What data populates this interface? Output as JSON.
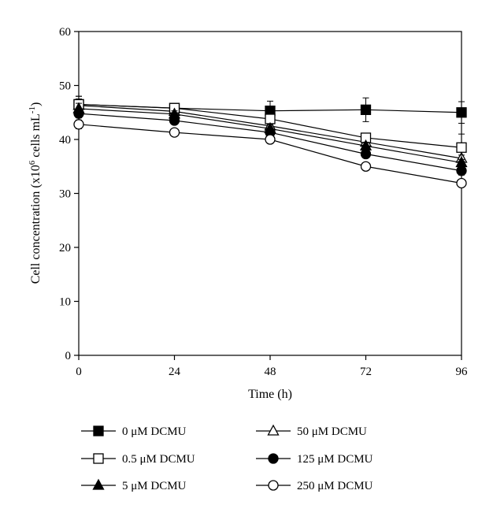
{
  "chart_data": {
    "type": "line",
    "xlabel": "Time (h)",
    "ylabel_main": "Cell concentration (x10",
    "ylabel_sup1": "6",
    "ylabel_mid": " cells mL",
    "ylabel_sup2": "-1",
    "ylabel_end": ")",
    "xlim": [
      0,
      96
    ],
    "ylim": [
      0,
      60
    ],
    "x_ticks": [
      0,
      24,
      48,
      72,
      96
    ],
    "y_ticks": [
      0,
      10,
      20,
      30,
      40,
      50,
      60
    ],
    "grid": false,
    "legend_position": "bottom",
    "series": [
      {
        "name": "0 μM DCMU",
        "marker": "square-filled",
        "x": [
          0,
          24,
          48,
          72,
          96
        ],
        "values": [
          46.5,
          45.8,
          45.3,
          45.5,
          45.0
        ],
        "err": [
          1.5,
          0.6,
          1.8,
          2.2,
          2.0
        ]
      },
      {
        "name": "50 μM DCMU",
        "marker": "triangle-open",
        "x": [
          0,
          24,
          48,
          72,
          96
        ],
        "values": [
          46.3,
          45.2,
          42.5,
          39.5,
          36.5
        ],
        "err": [
          1.2,
          0.5,
          0.8,
          0.7,
          0.6
        ]
      },
      {
        "name": "0.5 μM DCMU",
        "marker": "square-open",
        "x": [
          0,
          24,
          48,
          72,
          96
        ],
        "values": [
          46.5,
          45.8,
          43.8,
          40.3,
          38.5
        ],
        "err": [
          1.5,
          0.6,
          0.8,
          0.7,
          2.5
        ]
      },
      {
        "name": "125 μM DCMU",
        "marker": "circle-filled",
        "x": [
          0,
          24,
          48,
          72,
          96
        ],
        "values": [
          44.8,
          43.5,
          41.3,
          37.3,
          34.2
        ],
        "err": [
          0.8,
          0.6,
          0.6,
          0.6,
          0.8
        ]
      },
      {
        "name": "5 μM DCMU",
        "marker": "triangle-filled",
        "x": [
          0,
          24,
          48,
          72,
          96
        ],
        "values": [
          45.7,
          44.7,
          42.0,
          38.8,
          35.7
        ],
        "err": [
          1.0,
          0.6,
          0.8,
          0.7,
          0.6
        ]
      },
      {
        "name": "250 μM DCMU",
        "marker": "circle-open",
        "x": [
          0,
          24,
          48,
          72,
          96
        ],
        "values": [
          42.8,
          41.3,
          40.0,
          35.0,
          31.9
        ],
        "err": [
          0.8,
          0.5,
          0.5,
          0.6,
          0.6
        ]
      }
    ]
  }
}
